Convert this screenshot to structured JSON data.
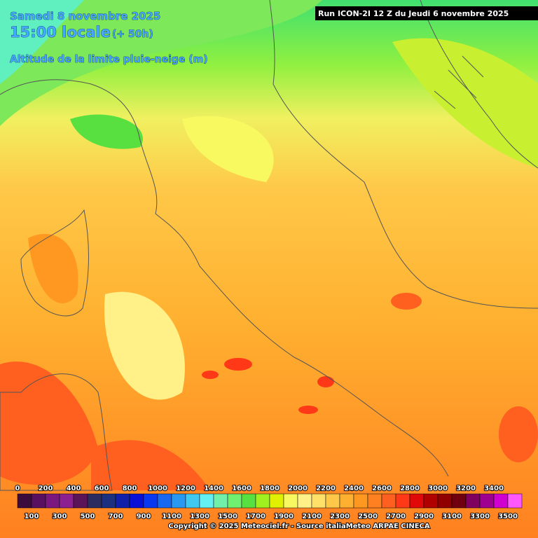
{
  "header": {
    "date": "Samedi 8 novembre 2025",
    "time": "15:00 locale",
    "lead": "(+ 50h)",
    "parameter": "Altitude de la limite pluie-neige (m)",
    "run": "Run ICON-2I 12 Z du Jeudi 6 novembre 2025"
  },
  "legend": {
    "values": [
      0,
      100,
      200,
      300,
      400,
      500,
      600,
      700,
      800,
      900,
      1000,
      1100,
      1200,
      1300,
      1400,
      1500,
      1600,
      1700,
      1800,
      1900,
      2000,
      2100,
      2200,
      2300,
      2400,
      2500,
      2600,
      2700,
      2800,
      2900,
      3000,
      3100,
      3200,
      3300,
      3400,
      3500
    ],
    "colors": [
      "#3c0c3c",
      "#5a1060",
      "#7a1880",
      "#8c2090",
      "#5c1458",
      "#2c2c60",
      "#1c3080",
      "#1020a8",
      "#0a10d8",
      "#0838f0",
      "#1868f0",
      "#2898f0",
      "#40c8f0",
      "#64f0f0",
      "#70f0a8",
      "#70f070",
      "#58e040",
      "#a0f020",
      "#e0f000",
      "#f8f860",
      "#fff088",
      "#ffe068",
      "#ffc848",
      "#ffb030",
      "#ff9820",
      "#ff8020",
      "#ff6020",
      "#ff3818",
      "#e00808",
      "#b00000",
      "#900000",
      "#700010",
      "#800060",
      "#a00090",
      "#d000d0",
      "#ff58ff"
    ]
  },
  "footer": {
    "copyright": "Copyright © 2025 Meteociel.fr - Source italiaMeteo ARPAE CINECA"
  }
}
